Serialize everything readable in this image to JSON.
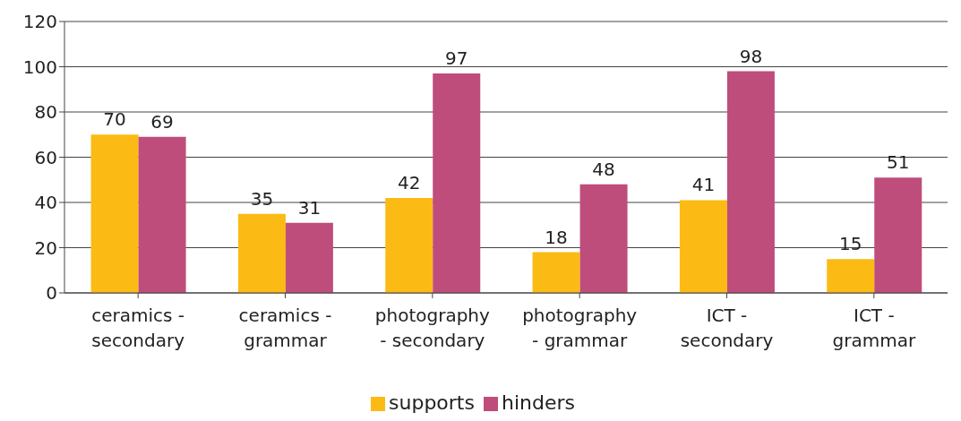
{
  "chart_data": {
    "type": "bar",
    "categories": [
      "ceramics - secondary",
      "ceramics - grammar",
      "photography - secondary",
      "photography - grammar",
      "ICT - secondary",
      "ICT - grammar"
    ],
    "series": [
      {
        "name": "supports",
        "color": "#fbbb14",
        "values": [
          70,
          35,
          42,
          18,
          41,
          15
        ]
      },
      {
        "name": "hinders",
        "color": "#be4d7b",
        "values": [
          69,
          31,
          97,
          48,
          98,
          51
        ]
      }
    ],
    "ylim": [
      0,
      120
    ],
    "yticks": [
      0,
      20,
      40,
      60,
      80,
      100,
      120
    ],
    "grid": "y",
    "legend": "bottom",
    "data_labels": true
  }
}
